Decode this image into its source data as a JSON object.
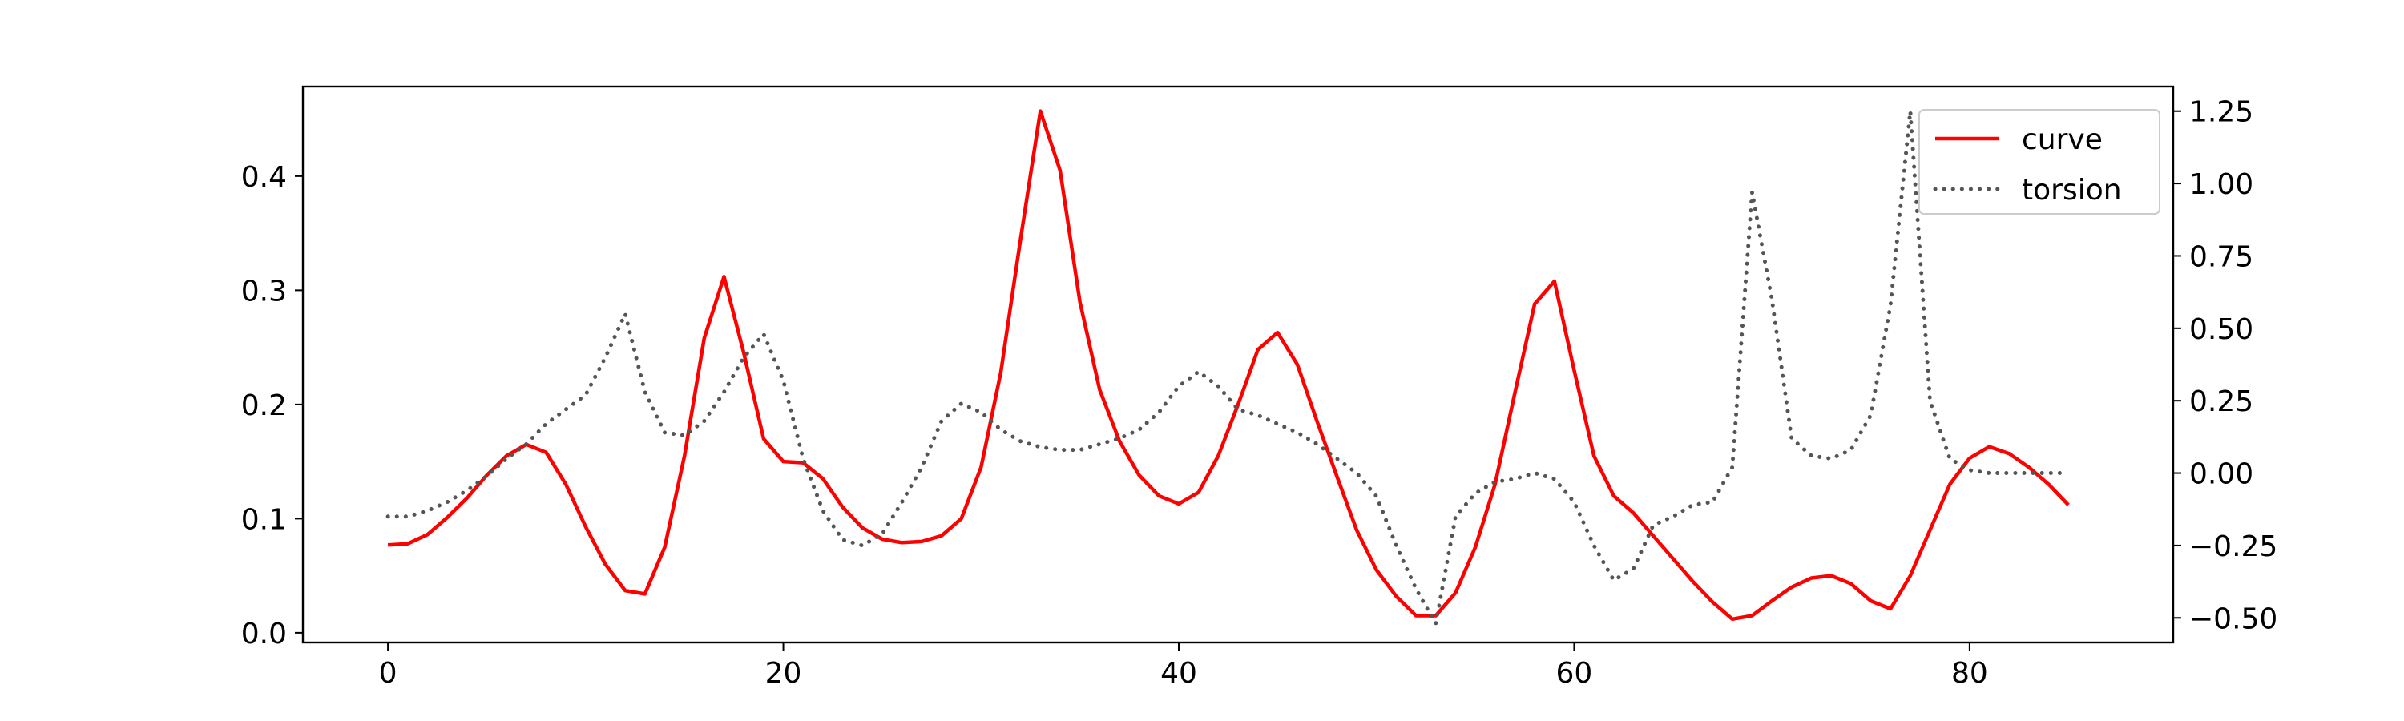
{
  "chart_data": {
    "type": "line",
    "title": "",
    "xlabel": "",
    "ylabel": "",
    "y2label": "",
    "xlim": [
      -4.3,
      90.3
    ],
    "ylim": [
      -0.0085,
      0.4785
    ],
    "y2lim": [
      -0.585,
      1.335
    ],
    "x_ticks": [
      0,
      20,
      40,
      60,
      80
    ],
    "y_ticks": [
      0.0,
      0.1,
      0.2,
      0.3,
      0.4
    ],
    "y2_ticks": [
      -0.5,
      -0.25,
      0.0,
      0.25,
      0.5,
      0.75,
      1.0,
      1.25
    ],
    "x_tick_labels": [
      "0",
      "20",
      "40",
      "60",
      "80"
    ],
    "y_tick_labels": [
      "0.0",
      "0.1",
      "0.2",
      "0.3",
      "0.4"
    ],
    "y2_tick_labels": [
      "−0.50",
      "−0.25",
      "0.00",
      "0.25",
      "0.50",
      "0.75",
      "1.00",
      "1.25"
    ],
    "grid": false,
    "legend_position": "top-right",
    "series": [
      {
        "name": "curve",
        "axis": "left",
        "color": "#ff0000",
        "style": "solid",
        "values": [
          0.077,
          0.078,
          0.086,
          0.101,
          0.118,
          0.138,
          0.155,
          0.165,
          0.158,
          0.13,
          0.093,
          0.06,
          0.037,
          0.034,
          0.075,
          0.155,
          0.258,
          0.312,
          0.245,
          0.17,
          0.15,
          0.149,
          0.135,
          0.11,
          0.092,
          0.082,
          0.079,
          0.08,
          0.085,
          0.1,
          0.145,
          0.228,
          0.345,
          0.457,
          0.405,
          0.29,
          0.213,
          0.168,
          0.138,
          0.12,
          0.113,
          0.123,
          0.155,
          0.2,
          0.248,
          0.263,
          0.235,
          0.185,
          0.137,
          0.09,
          0.055,
          0.032,
          0.015,
          0.015,
          0.035,
          0.075,
          0.13,
          0.21,
          0.288,
          0.308,
          0.23,
          0.155,
          0.12,
          0.105,
          0.085,
          0.065,
          0.045,
          0.027,
          0.012,
          0.015,
          0.028,
          0.04,
          0.048,
          0.05,
          0.043,
          0.028,
          0.021,
          0.05,
          0.09,
          0.13,
          0.153,
          0.163,
          0.157,
          0.145,
          0.13,
          0.112
        ]
      },
      {
        "name": "torsion",
        "axis": "right",
        "color": "#555555",
        "style": "dotted",
        "values": [
          -0.15,
          -0.15,
          -0.13,
          -0.1,
          -0.06,
          -0.01,
          0.05,
          0.1,
          0.17,
          0.22,
          0.27,
          0.4,
          0.55,
          0.28,
          0.14,
          0.13,
          0.18,
          0.28,
          0.4,
          0.48,
          0.32,
          0.05,
          -0.13,
          -0.23,
          -0.25,
          -0.21,
          -0.1,
          0.02,
          0.18,
          0.24,
          0.21,
          0.15,
          0.11,
          0.09,
          0.08,
          0.08,
          0.1,
          0.12,
          0.15,
          0.21,
          0.3,
          0.35,
          0.3,
          0.22,
          0.2,
          0.17,
          0.14,
          0.1,
          0.05,
          0.0,
          -0.08,
          -0.25,
          -0.4,
          -0.52,
          -0.15,
          -0.07,
          -0.03,
          -0.02,
          0.0,
          -0.02,
          -0.1,
          -0.25,
          -0.37,
          -0.33,
          -0.18,
          -0.15,
          -0.11,
          -0.1,
          0.02,
          0.97,
          0.6,
          0.12,
          0.06,
          0.05,
          0.08,
          0.2,
          0.58,
          1.25,
          0.25,
          0.05,
          0.01,
          0.0,
          0.0,
          0.0,
          0.0,
          0.0
        ]
      }
    ]
  }
}
